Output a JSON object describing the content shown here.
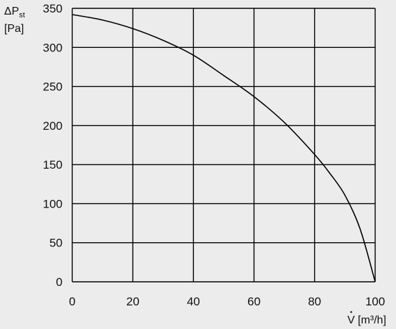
{
  "chart_data": {
    "type": "line",
    "title": "",
    "ylabel_main": "ΔP",
    "ylabel_sub": "st",
    "ylabel_unit": "[Pa]",
    "xlabel_symbol": "V",
    "xlabel_unit": "[m³/h]",
    "xlim": [
      0,
      100
    ],
    "ylim": [
      0,
      350
    ],
    "x_ticks": [
      "0",
      "20",
      "40",
      "60",
      "80",
      "100"
    ],
    "y_ticks": [
      "0",
      "50",
      "100",
      "150",
      "200",
      "250",
      "300",
      "350"
    ],
    "grid": true,
    "series": [
      {
        "x": [
          0,
          10,
          20,
          30,
          40,
          50,
          60,
          70,
          80,
          85,
          90,
          95,
          100
        ],
        "y": [
          342,
          335,
          324,
          309,
          290,
          264,
          237,
          204,
          163,
          139,
          111,
          68,
          0
        ]
      }
    ]
  }
}
